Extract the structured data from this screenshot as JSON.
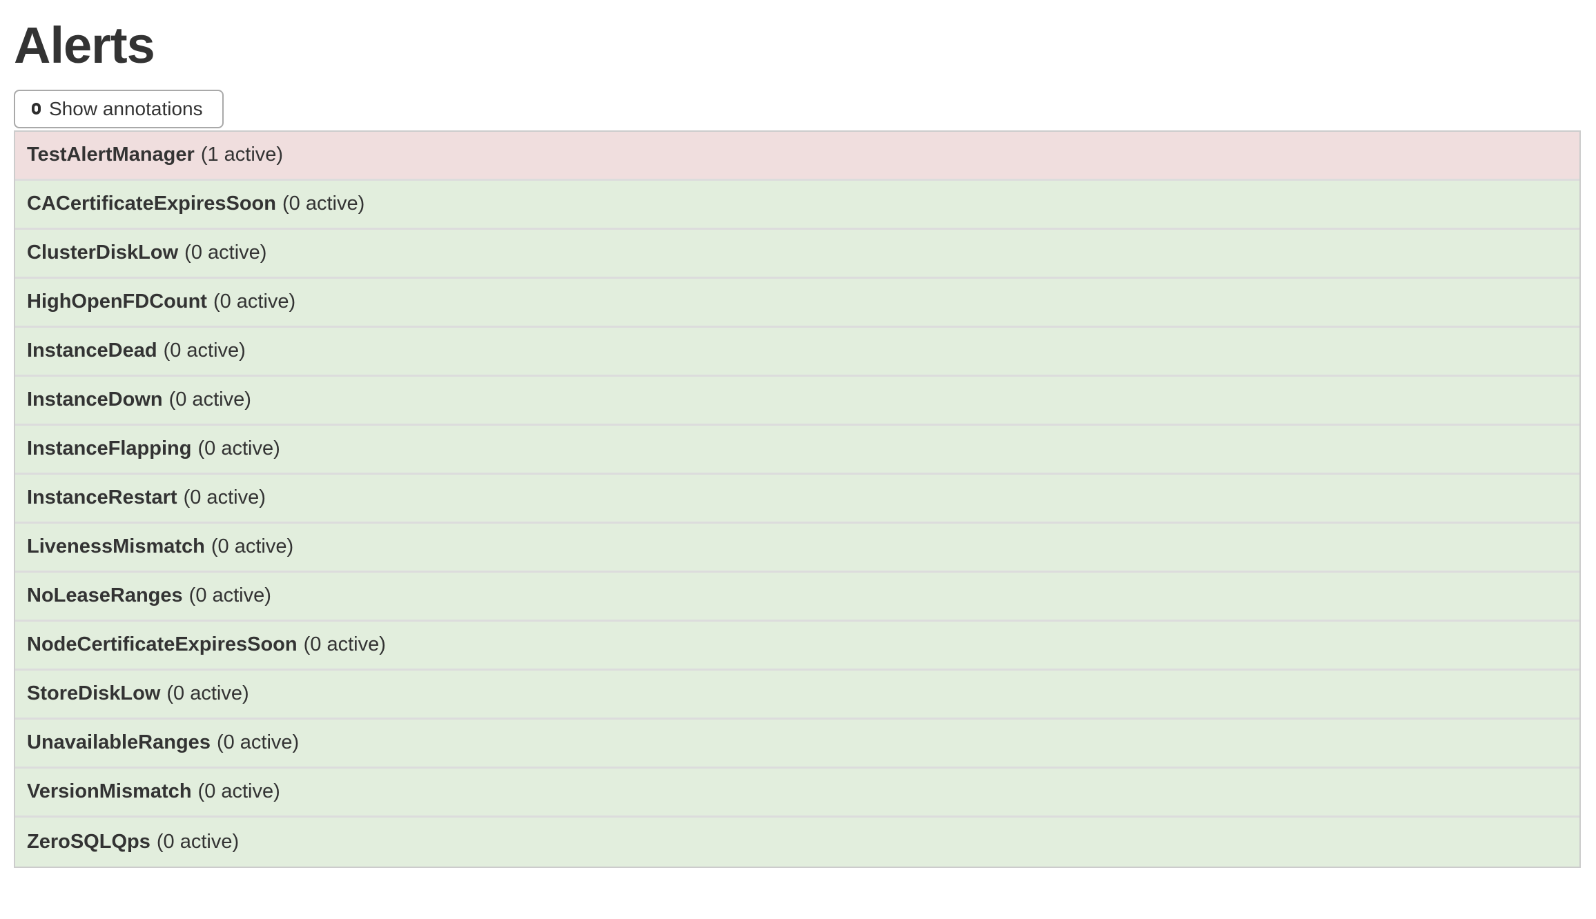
{
  "page": {
    "title": "Alerts"
  },
  "toolbar": {
    "show_annotations": {
      "label": "Show annotations",
      "checked": false
    }
  },
  "alerts": [
    {
      "name": "TestAlertManager",
      "active": 1,
      "count_label": "(1 active)",
      "state": "firing"
    },
    {
      "name": "CACertificateExpiresSoon",
      "active": 0,
      "count_label": "(0 active)",
      "state": "inactive"
    },
    {
      "name": "ClusterDiskLow",
      "active": 0,
      "count_label": "(0 active)",
      "state": "inactive"
    },
    {
      "name": "HighOpenFDCount",
      "active": 0,
      "count_label": "(0 active)",
      "state": "inactive"
    },
    {
      "name": "InstanceDead",
      "active": 0,
      "count_label": "(0 active)",
      "state": "inactive"
    },
    {
      "name": "InstanceDown",
      "active": 0,
      "count_label": "(0 active)",
      "state": "inactive"
    },
    {
      "name": "InstanceFlapping",
      "active": 0,
      "count_label": "(0 active)",
      "state": "inactive"
    },
    {
      "name": "InstanceRestart",
      "active": 0,
      "count_label": "(0 active)",
      "state": "inactive"
    },
    {
      "name": "LivenessMismatch",
      "active": 0,
      "count_label": "(0 active)",
      "state": "inactive"
    },
    {
      "name": "NoLeaseRanges",
      "active": 0,
      "count_label": "(0 active)",
      "state": "inactive"
    },
    {
      "name": "NodeCertificateExpiresSoon",
      "active": 0,
      "count_label": "(0 active)",
      "state": "inactive"
    },
    {
      "name": "StoreDiskLow",
      "active": 0,
      "count_label": "(0 active)",
      "state": "inactive"
    },
    {
      "name": "UnavailableRanges",
      "active": 0,
      "count_label": "(0 active)",
      "state": "inactive"
    },
    {
      "name": "VersionMismatch",
      "active": 0,
      "count_label": "(0 active)",
      "state": "inactive"
    },
    {
      "name": "ZeroSQLQps",
      "active": 0,
      "count_label": "(0 active)",
      "state": "inactive"
    }
  ],
  "colors": {
    "firing_row_bg": "#f0dede",
    "inactive_row_bg": "#e2eedd",
    "row_text": "#333333",
    "row_separator": "#dcdcdc",
    "table_border": "#cccccc",
    "button_border": "#a9a9a9"
  }
}
